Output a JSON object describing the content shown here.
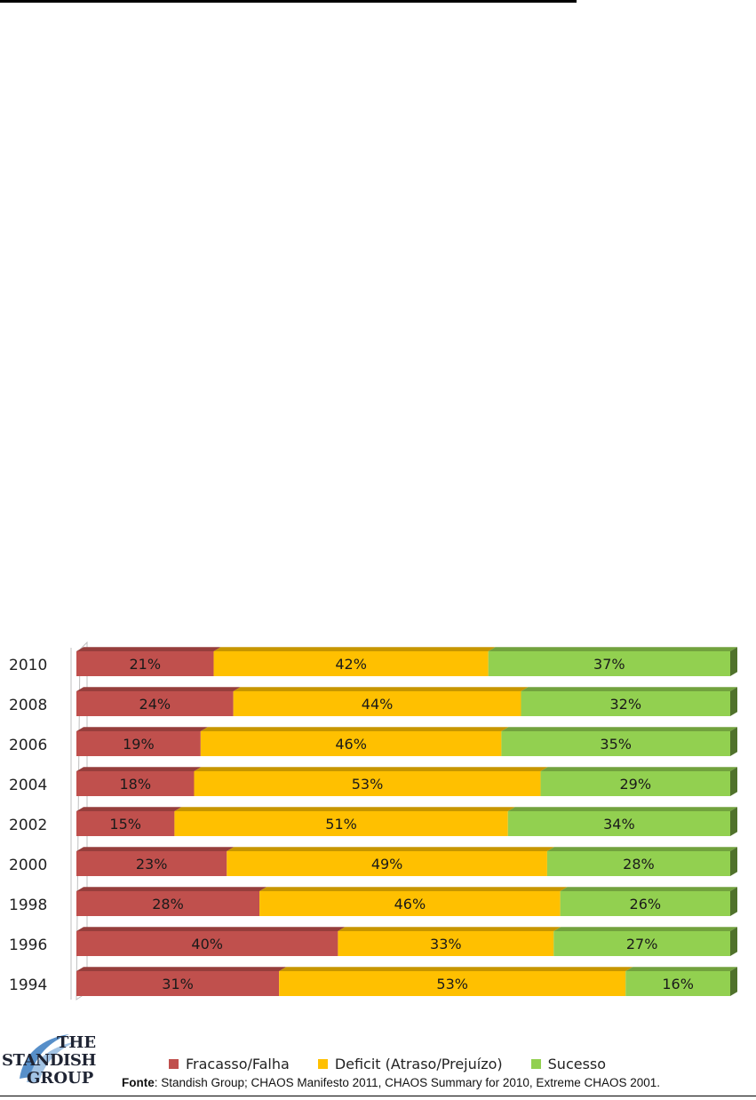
{
  "chart_data": {
    "type": "bar",
    "orientation": "horizontal",
    "stacked": true,
    "categories": [
      "2010",
      "2008",
      "2006",
      "2004",
      "2002",
      "2000",
      "1998",
      "1996",
      "1994"
    ],
    "series": [
      {
        "name": "Fracasso/Falha",
        "color": "#c0504d",
        "values": [
          21,
          24,
          19,
          18,
          15,
          23,
          28,
          40,
          31
        ]
      },
      {
        "name": "Deficit (Atraso/Prejuízo)",
        "color": "#ffc000",
        "values": [
          42,
          44,
          46,
          53,
          51,
          49,
          46,
          33,
          53
        ]
      },
      {
        "name": "Sucesso",
        "color": "#92d050",
        "values": [
          37,
          32,
          35,
          29,
          34,
          28,
          26,
          27,
          16
        ]
      }
    ],
    "value_suffix": "%",
    "xlim": [
      0,
      100
    ],
    "legend_position": "bottom",
    "grid": false
  },
  "footer": {
    "source_label": "Fonte",
    "source_text": ": Standish Group; CHAOS Manifesto 2011, CHAOS Summary for 2010, Extreme CHAOS 2001.",
    "logo": {
      "line1": "THE",
      "line2": "STANDISH",
      "line3": "GROUP"
    }
  }
}
